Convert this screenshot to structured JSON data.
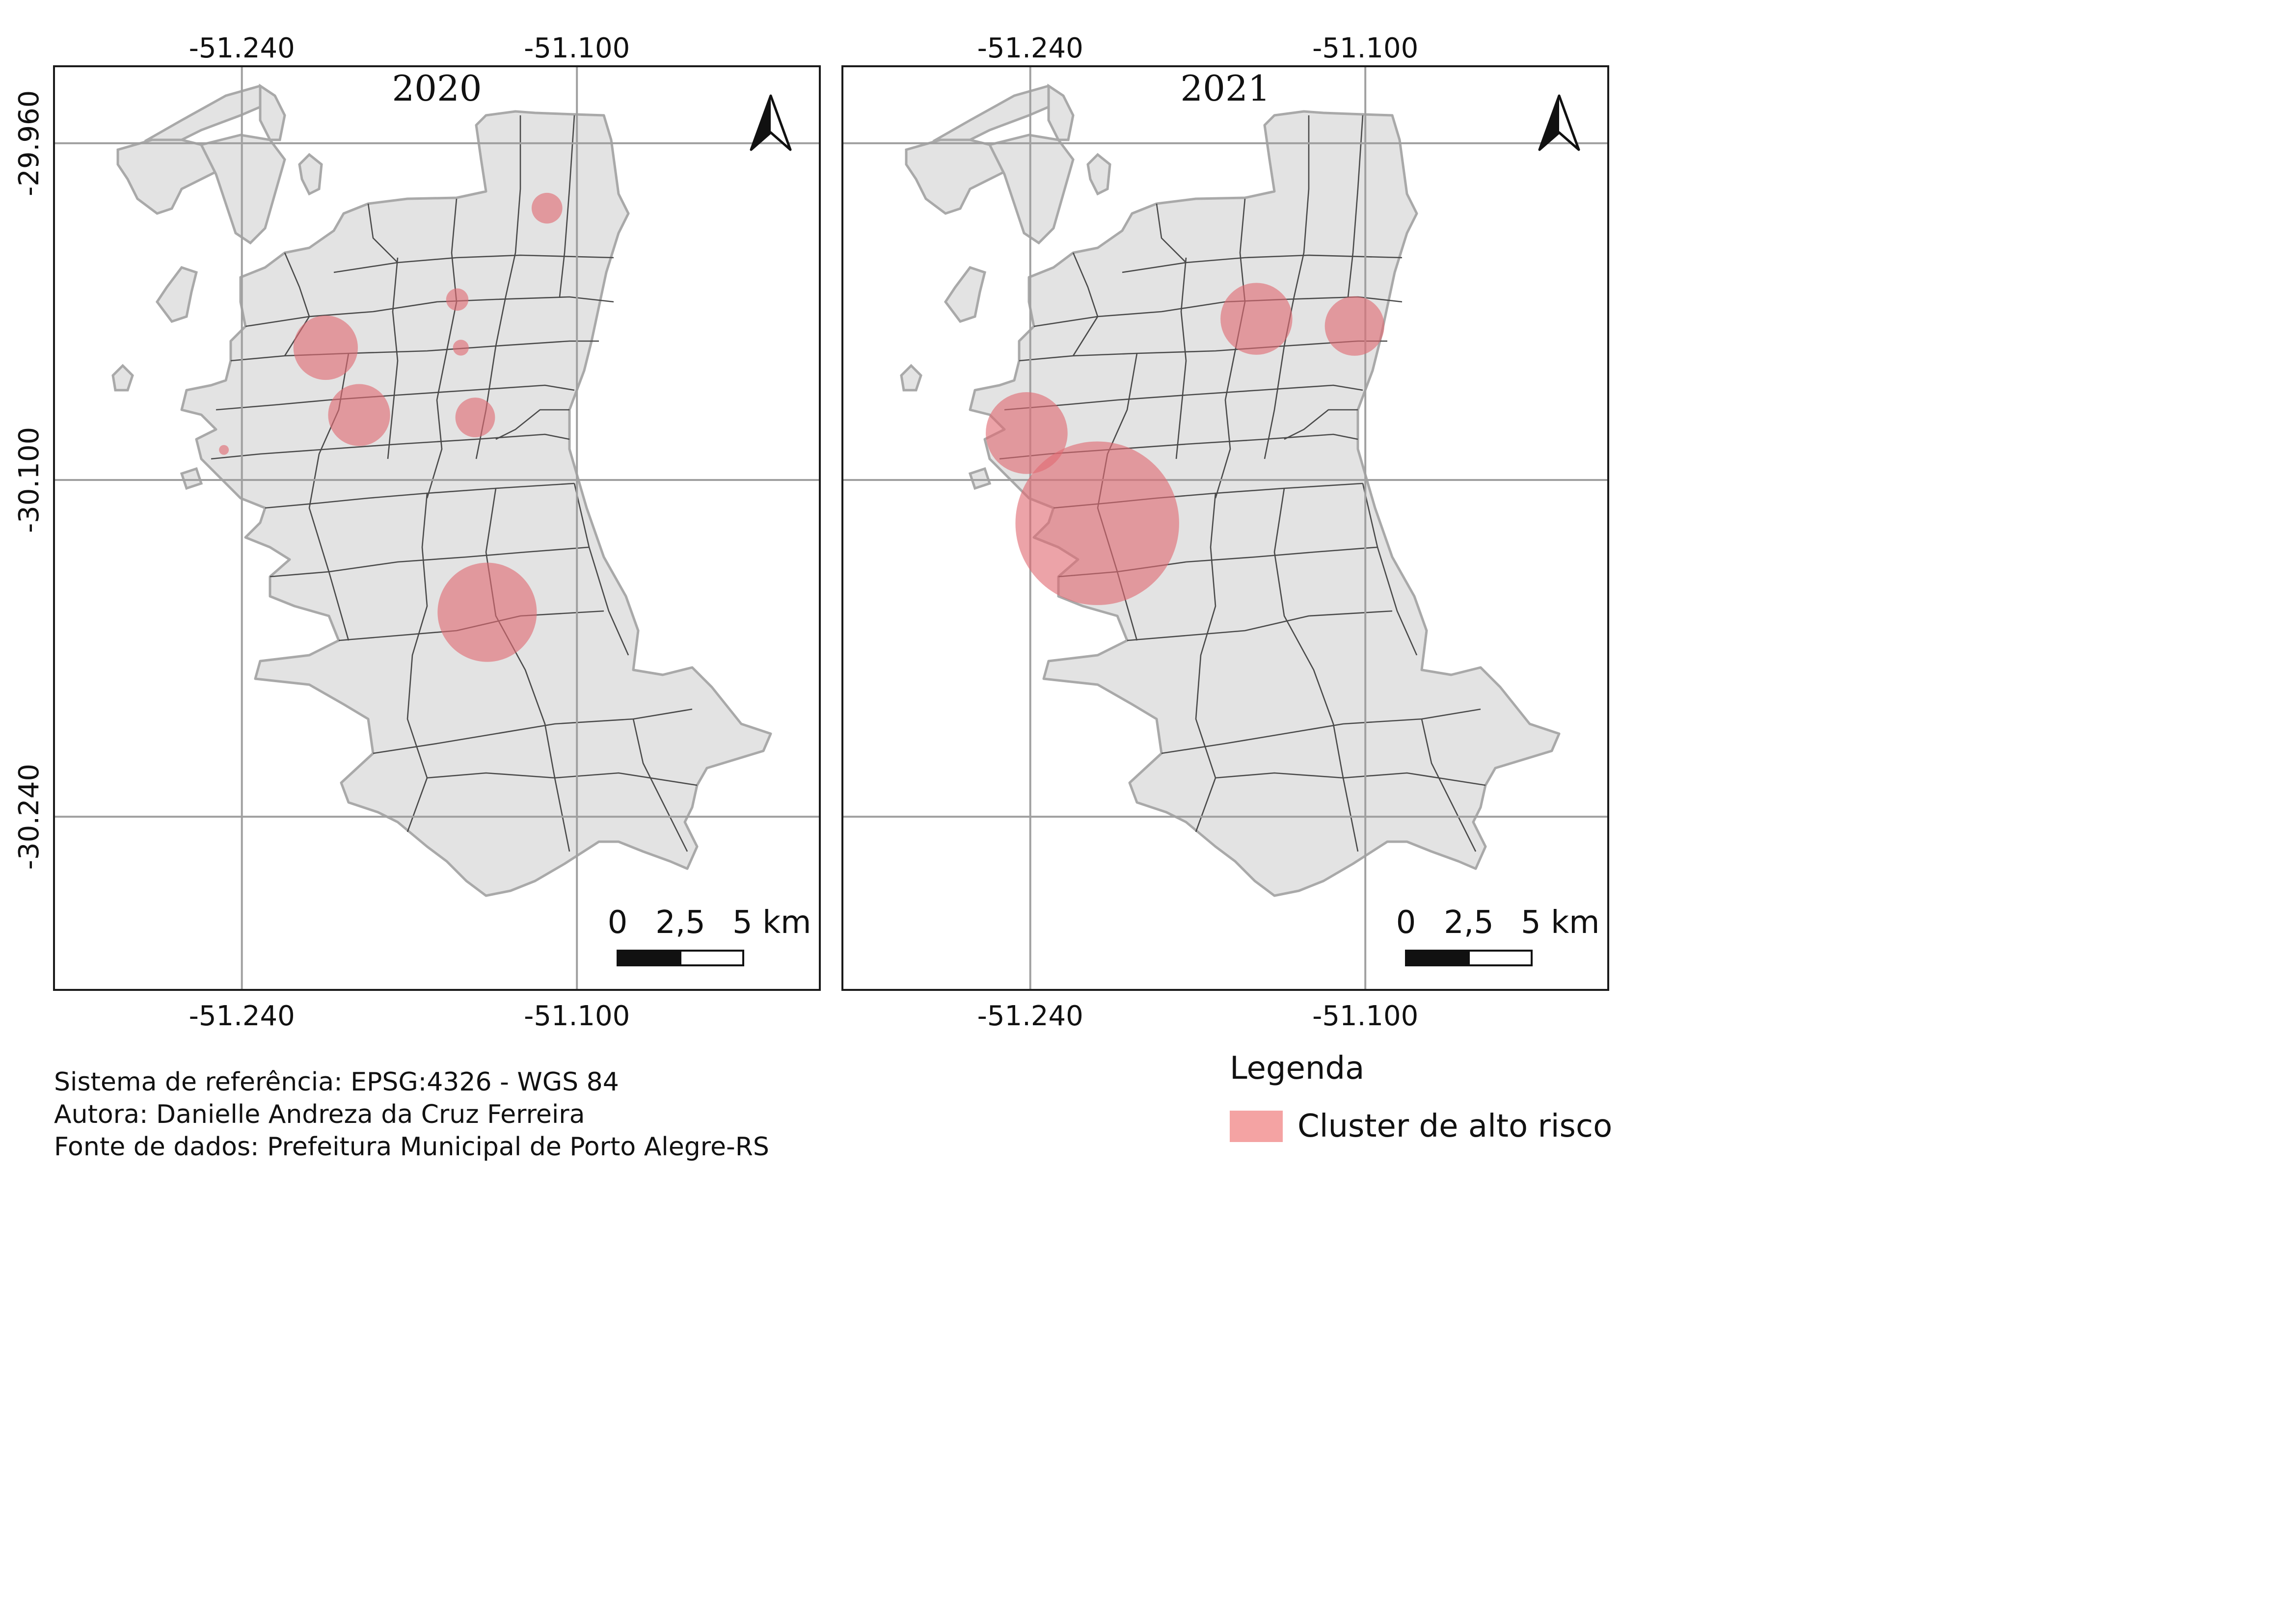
{
  "maps": [
    {
      "title": "2020",
      "clusters": [
        {
          "lon": -51.1125,
          "lat": -29.987,
          "r_km": 0.62,
          "size": "small"
        },
        {
          "lon": -51.15,
          "lat": -30.025,
          "r_km": 0.45,
          "size": "small"
        },
        {
          "lon": -51.1485,
          "lat": -30.045,
          "r_km": 0.32,
          "size": "small"
        },
        {
          "lon": -51.205,
          "lat": -30.045,
          "r_km": 1.3,
          "size": "medium"
        },
        {
          "lon": -51.191,
          "lat": -30.073,
          "r_km": 1.25,
          "size": "medium"
        },
        {
          "lon": -51.1425,
          "lat": -30.074,
          "r_km": 0.8,
          "size": "small"
        },
        {
          "lon": -51.2475,
          "lat": -30.0875,
          "r_km": 0.15,
          "size": "tiny"
        },
        {
          "lon": -51.1375,
          "lat": -30.155,
          "r_km": 2.0,
          "size": "large"
        }
      ]
    },
    {
      "title": "2021",
      "clusters": [
        {
          "lon": -51.1455,
          "lat": -30.033,
          "r_km": 1.45,
          "size": "medium"
        },
        {
          "lon": -51.1045,
          "lat": -30.036,
          "r_km": 1.2,
          "size": "medium"
        },
        {
          "lon": -51.2415,
          "lat": -30.0805,
          "r_km": 1.65,
          "size": "medium"
        },
        {
          "lon": -51.212,
          "lat": -30.118,
          "r_km": 3.3,
          "size": "large"
        }
      ]
    }
  ],
  "axes": {
    "lon_ticks": [
      "-51.240",
      "-51.100"
    ],
    "lat_ticks": [
      "-29.960",
      "-30.100",
      "-30.240"
    ]
  },
  "scalebar": {
    "zero": "0",
    "mid": "2,5",
    "end": "5 km"
  },
  "credits": {
    "line1": "Sistema de referência: EPSG:4326 - WGS 84",
    "line2": "Autora: Danielle Andreza da Cruz Ferreira",
    "line3": "Fonte de dados: Prefeitura Municipal de Porto Alegre-RS"
  },
  "legend": {
    "title": "Legenda",
    "item_label": "Cluster de alto risco"
  },
  "colors": {
    "land": "#e3e3e3",
    "land_stroke": "#a9a9a9",
    "district_stroke": "#4a4a4a",
    "grid": "#a0a0a0",
    "cluster": "#e06a72",
    "legend_swatch": "#f4a3a3"
  }
}
